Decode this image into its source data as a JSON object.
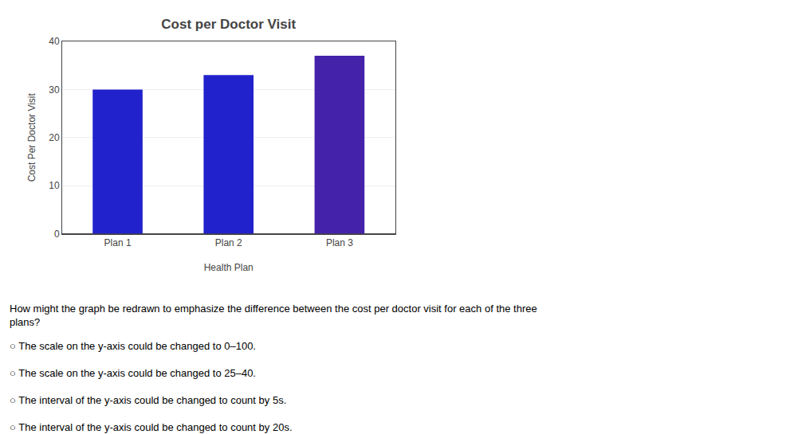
{
  "chart_data": {
    "type": "bar",
    "title": "Cost per Doctor Visit",
    "x_label": "Health Plan",
    "y_label": "Cost Per Doctor Visit",
    "categories": [
      "Plan 1",
      "Plan 2",
      "Plan 3"
    ],
    "values": [
      30,
      33,
      37
    ],
    "colors": [
      "#2222CC",
      "#2222CC",
      "#4422AA"
    ],
    "ylim": [
      0,
      40
    ],
    "yticks": [
      0,
      10,
      20,
      30,
      40
    ],
    "grid": true,
    "annotations": [
      "How might the graph be redrawn to emphasize the difference between the cost per doctor visit for each of the three\nplans?",
      "○ The scale on the y-axis could be changed to 0–100.",
      "○ The scale on the y-axis could be changed to 25–40.",
      "○ The interval of the y-axis could be changed to count by 5s.",
      "○ The interval of the y-axis could be changed to count by 20s."
    ]
  }
}
